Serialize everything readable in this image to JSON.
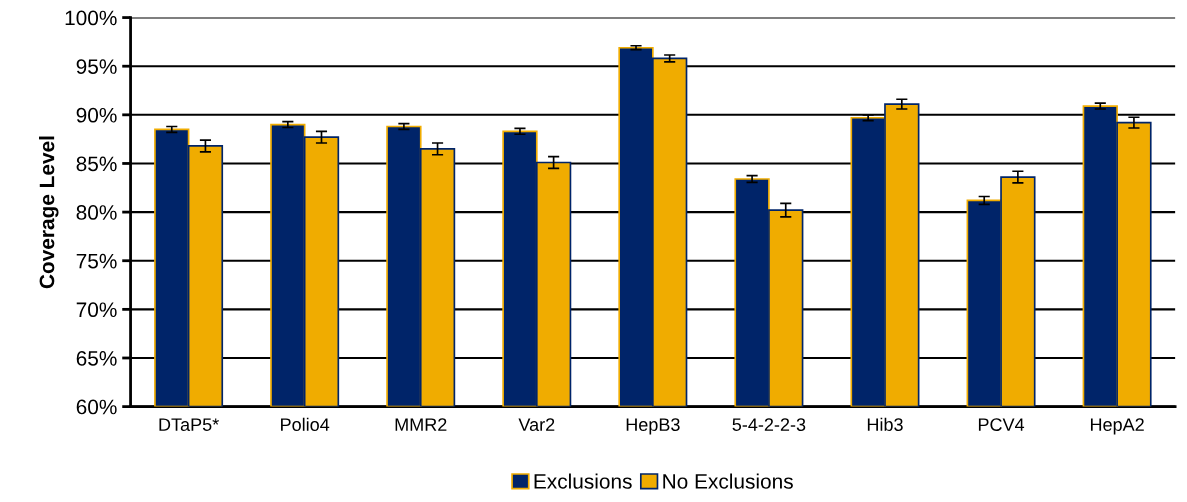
{
  "chart_data": {
    "type": "bar",
    "ylabel": "Coverage Level",
    "categories": [
      "DTaP5*",
      "Polio4",
      "MMR2",
      "Var2",
      "HepB3",
      "5-4-2-2-3",
      "Hib3",
      "PCV4",
      "HepA2"
    ],
    "series": [
      {
        "name": "Exclusions",
        "color": "#002469",
        "values": [
          88.5,
          89.0,
          88.8,
          88.3,
          96.9,
          83.4,
          89.7,
          81.2,
          90.9
        ],
        "errors": [
          0.3,
          0.3,
          0.3,
          0.3,
          0.2,
          0.35,
          0.3,
          0.4,
          0.3
        ]
      },
      {
        "name": "No Exclusions",
        "color": "#f0ac00",
        "values": [
          86.8,
          87.7,
          86.5,
          85.1,
          95.8,
          80.2,
          91.1,
          83.6,
          89.2
        ],
        "errors": [
          0.6,
          0.6,
          0.6,
          0.6,
          0.35,
          0.7,
          0.5,
          0.6,
          0.55
        ]
      }
    ],
    "ylim": [
      60,
      100
    ],
    "yticks": [
      {
        "value": 60,
        "label": "60%"
      },
      {
        "value": 65,
        "label": "65%"
      },
      {
        "value": 70,
        "label": "70%"
      },
      {
        "value": 75,
        "label": "75%"
      },
      {
        "value": 80,
        "label": "80%"
      },
      {
        "value": 85,
        "label": "85%"
      },
      {
        "value": 90,
        "label": "90%"
      },
      {
        "value": 95,
        "label": "95%"
      },
      {
        "value": 100,
        "label": "100%"
      }
    ],
    "grid": "y",
    "legend": "bottom"
  }
}
